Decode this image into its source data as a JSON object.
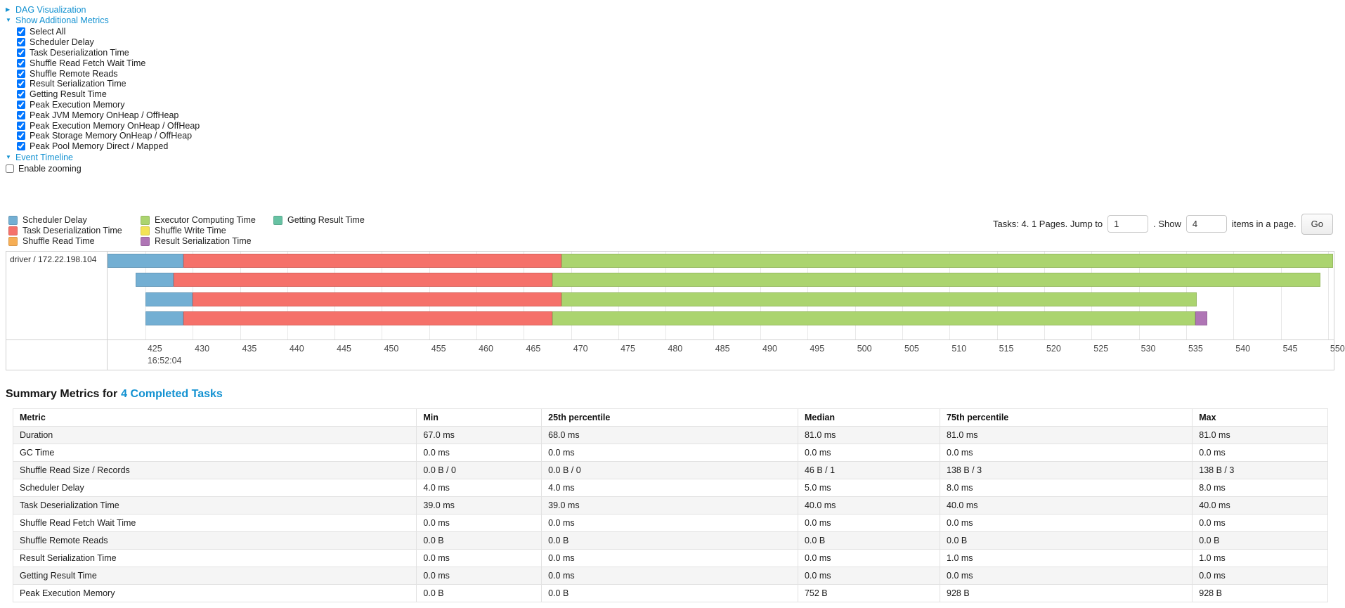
{
  "controls": {
    "dag": {
      "label": "DAG Visualization",
      "collapsed": true
    },
    "additional_metrics": {
      "label": "Show Additional Metrics",
      "items": [
        {
          "label": "Select All",
          "checked": true
        },
        {
          "label": "Scheduler Delay",
          "checked": true
        },
        {
          "label": "Task Deserialization Time",
          "checked": true
        },
        {
          "label": "Shuffle Read Fetch Wait Time",
          "checked": true
        },
        {
          "label": "Shuffle Remote Reads",
          "checked": true
        },
        {
          "label": "Result Serialization Time",
          "checked": true
        },
        {
          "label": "Getting Result Time",
          "checked": true
        },
        {
          "label": "Peak Execution Memory",
          "checked": true
        },
        {
          "label": "Peak JVM Memory OnHeap / OffHeap",
          "checked": true
        },
        {
          "label": "Peak Execution Memory OnHeap / OffHeap",
          "checked": true
        },
        {
          "label": "Peak Storage Memory OnHeap / OffHeap",
          "checked": true
        },
        {
          "label": "Peak Pool Memory Direct / Mapped",
          "checked": true
        }
      ]
    },
    "event_timeline": {
      "label": "Event Timeline",
      "collapsed": false
    },
    "enable_zooming": {
      "label": "Enable zooming",
      "checked": false
    }
  },
  "legend": {
    "columns": [
      [
        {
          "label": "Scheduler Delay",
          "series": "scheduler_delay"
        },
        {
          "label": "Task Deserialization Time",
          "series": "task_deserialization"
        },
        {
          "label": "Shuffle Read Time",
          "series": "shuffle_read"
        }
      ],
      [
        {
          "label": "Executor Computing Time",
          "series": "executor_computing"
        },
        {
          "label": "Shuffle Write Time",
          "series": "shuffle_write"
        },
        {
          "label": "Result Serialization Time",
          "series": "result_serialization"
        }
      ],
      [
        {
          "label": "Getting Result Time",
          "series": "getting_result"
        }
      ]
    ]
  },
  "pagination": {
    "prefix": "Tasks: 4. 1 Pages. Jump to",
    "jump_value": "1",
    "show_label": ". Show",
    "show_value": "4",
    "items_label": "items in a page.",
    "go_label": "Go"
  },
  "chart_data": {
    "type": "timeline",
    "group_label": "driver / 172.22.198.104",
    "x_axis": {
      "start_label": "16:52:04",
      "unit": "ms within 16:52:04",
      "min": 421,
      "max": 550.6,
      "first_tick": 425,
      "last_tick": 550,
      "tick_step": 5
    },
    "series_colors": {
      "scheduler_delay": "#73afd3",
      "task_deserialization": "#f5716a",
      "shuffle_read": "#f6ae55",
      "executor_computing": "#abd46f",
      "shuffle_write": "#f3e356",
      "result_serialization": "#af75b5",
      "getting_result": "#67c2a3"
    },
    "tasks": [
      {
        "segments": [
          {
            "type": "scheduler_delay",
            "start": 421,
            "end": 429
          },
          {
            "type": "task_deserialization",
            "start": 429,
            "end": 469
          },
          {
            "type": "executor_computing",
            "start": 469,
            "end": 550.5
          }
        ]
      },
      {
        "segments": [
          {
            "type": "scheduler_delay",
            "start": 424,
            "end": 428
          },
          {
            "type": "task_deserialization",
            "start": 428,
            "end": 468
          },
          {
            "type": "executor_computing",
            "start": 468,
            "end": 549.2
          }
        ]
      },
      {
        "segments": [
          {
            "type": "scheduler_delay",
            "start": 425,
            "end": 430
          },
          {
            "type": "task_deserialization",
            "start": 430,
            "end": 469
          },
          {
            "type": "executor_computing",
            "start": 469,
            "end": 536.1
          }
        ]
      },
      {
        "segments": [
          {
            "type": "scheduler_delay",
            "start": 425,
            "end": 429
          },
          {
            "type": "task_deserialization",
            "start": 429,
            "end": 468
          },
          {
            "type": "executor_computing",
            "start": 468,
            "end": 536
          },
          {
            "type": "result_serialization",
            "start": 536,
            "end": 537.2
          }
        ]
      }
    ]
  },
  "summary": {
    "title_prefix": "Summary Metrics for",
    "title_link": "4 Completed Tasks",
    "columns": [
      "Metric",
      "Min",
      "25th percentile",
      "Median",
      "75th percentile",
      "Max"
    ],
    "rows": [
      [
        "Duration",
        "67.0 ms",
        "68.0 ms",
        "81.0 ms",
        "81.0 ms",
        "81.0 ms"
      ],
      [
        "GC Time",
        "0.0 ms",
        "0.0 ms",
        "0.0 ms",
        "0.0 ms",
        "0.0 ms"
      ],
      [
        "Shuffle Read Size / Records",
        "0.0 B / 0",
        "0.0 B / 0",
        "46 B / 1",
        "138 B / 3",
        "138 B / 3"
      ],
      [
        "Scheduler Delay",
        "4.0 ms",
        "4.0 ms",
        "5.0 ms",
        "8.0 ms",
        "8.0 ms"
      ],
      [
        "Task Deserialization Time",
        "39.0 ms",
        "39.0 ms",
        "40.0 ms",
        "40.0 ms",
        "40.0 ms"
      ],
      [
        "Shuffle Read Fetch Wait Time",
        "0.0 ms",
        "0.0 ms",
        "0.0 ms",
        "0.0 ms",
        "0.0 ms"
      ],
      [
        "Shuffle Remote Reads",
        "0.0 B",
        "0.0 B",
        "0.0 B",
        "0.0 B",
        "0.0 B"
      ],
      [
        "Result Serialization Time",
        "0.0 ms",
        "0.0 ms",
        "0.0 ms",
        "1.0 ms",
        "1.0 ms"
      ],
      [
        "Getting Result Time",
        "0.0 ms",
        "0.0 ms",
        "0.0 ms",
        "0.0 ms",
        "0.0 ms"
      ],
      [
        "Peak Execution Memory",
        "0.0 B",
        "0.0 B",
        "752 B",
        "928 B",
        "928 B"
      ]
    ]
  }
}
